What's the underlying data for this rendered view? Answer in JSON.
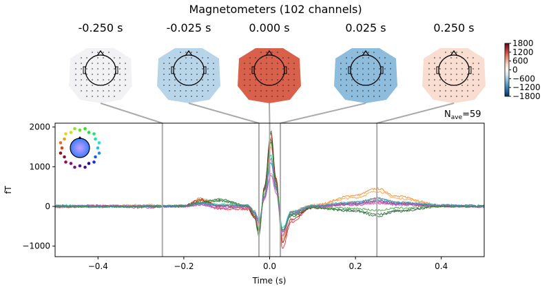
{
  "title": "Magnetometers (102 channels)",
  "nave_label": "N",
  "nave_sub": "ave",
  "nave_value": "=59",
  "topomaps": [
    {
      "label": "-0.250 s",
      "time": -0.25,
      "color": "#f2f2f4"
    },
    {
      "label": "-0.025 s",
      "time": -0.025,
      "color": "#b7d4e8"
    },
    {
      "label": "0.000 s",
      "time": 0.0,
      "color": "#d9604a"
    },
    {
      "label": "0.025 s",
      "time": 0.025,
      "color": "#8dbcdc"
    },
    {
      "label": "0.250 s",
      "time": 0.25,
      "color": "#f8ddd0"
    }
  ],
  "colorbar": {
    "ticks": [
      "1800",
      "1200",
      "600",
      "0",
      "−600",
      "−1200",
      "−1800"
    ],
    "values": [
      1800,
      1200,
      600,
      0,
      -600,
      -1200,
      -1800
    ],
    "colormap": "RdBu_r"
  },
  "chart_data": {
    "type": "line",
    "xlabel": "Time (s)",
    "ylabel": "fT",
    "xlim": [
      -0.5,
      0.5
    ],
    "ylim": [
      -1250,
      2100
    ],
    "xticks": [
      "−0.4",
      "−0.2",
      "0.0",
      "0.2",
      "0.4"
    ],
    "xtick_values": [
      -0.4,
      -0.2,
      0.0,
      0.2,
      0.4
    ],
    "yticks": [
      "2000",
      "1000",
      "0",
      "−1000"
    ],
    "ytick_values": [
      2000,
      1000,
      0,
      -1000
    ],
    "marker_times": [
      -0.25,
      -0.025,
      0.0,
      0.025,
      0.25
    ],
    "x": [
      -0.5,
      -0.4,
      -0.3,
      -0.2,
      -0.16,
      -0.12,
      -0.05,
      -0.035,
      -0.025,
      -0.012,
      0.003,
      0.015,
      0.03,
      0.05,
      0.1,
      0.2,
      0.25,
      0.3,
      0.4,
      0.5
    ],
    "series": [
      {
        "color": "#ff7f0e",
        "values": [
          0,
          20,
          10,
          20,
          200,
          40,
          0,
          -150,
          -450,
          300,
          1750,
          700,
          -900,
          -150,
          30,
          280,
          450,
          250,
          30,
          0
        ]
      },
      {
        "color": "#ff9f40",
        "values": [
          -20,
          0,
          40,
          0,
          150,
          30,
          10,
          -120,
          -400,
          250,
          1500,
          600,
          -800,
          -120,
          40,
          220,
          380,
          200,
          20,
          -10
        ]
      },
      {
        "color": "#1a6b2a",
        "values": [
          0,
          10,
          0,
          0,
          100,
          180,
          20,
          -300,
          -750,
          500,
          1900,
          600,
          -600,
          -250,
          -40,
          -120,
          -250,
          -120,
          0,
          0
        ]
      },
      {
        "color": "#2e5e3e",
        "values": [
          10,
          0,
          -10,
          0,
          80,
          150,
          0,
          -250,
          -650,
          400,
          1700,
          500,
          -650,
          -220,
          -30,
          -100,
          -200,
          -100,
          10,
          0
        ]
      },
      {
        "color": "#d62728",
        "values": [
          0,
          0,
          0,
          0,
          150,
          -60,
          -80,
          -280,
          -600,
          450,
          1650,
          700,
          -1050,
          -400,
          0,
          100,
          200,
          100,
          0,
          0
        ]
      },
      {
        "color": "#8b1a1a",
        "values": [
          0,
          20,
          0,
          10,
          180,
          0,
          -40,
          -260,
          -620,
          480,
          1850,
          650,
          -900,
          -330,
          -10,
          60,
          120,
          60,
          10,
          0
        ]
      },
      {
        "color": "#e377c2",
        "values": [
          0,
          30,
          0,
          0,
          50,
          -50,
          0,
          -180,
          -450,
          200,
          850,
          400,
          -700,
          -200,
          0,
          50,
          100,
          50,
          20,
          0
        ]
      },
      {
        "color": "#c83cb4",
        "values": [
          -20,
          10,
          -30,
          0,
          40,
          -40,
          -20,
          -170,
          -420,
          180,
          800,
          350,
          -650,
          -180,
          -10,
          40,
          80,
          40,
          0,
          -10
        ]
      },
      {
        "color": "#1f77b4",
        "values": [
          20,
          0,
          10,
          10,
          60,
          20,
          30,
          -150,
          -350,
          250,
          1100,
          450,
          -600,
          -150,
          20,
          80,
          150,
          80,
          30,
          20
        ]
      },
      {
        "color": "#17becf",
        "values": [
          30,
          -10,
          0,
          20,
          80,
          60,
          20,
          -130,
          -380,
          300,
          1300,
          500,
          -550,
          -130,
          20,
          120,
          200,
          100,
          40,
          10
        ]
      },
      {
        "color": "#9467bd",
        "values": [
          0,
          10,
          20,
          0,
          70,
          10,
          0,
          -160,
          -420,
          260,
          1200,
          480,
          -750,
          -180,
          0,
          60,
          140,
          70,
          20,
          0
        ]
      },
      {
        "color": "#2ca02c",
        "values": [
          10,
          -10,
          0,
          10,
          120,
          140,
          10,
          -220,
          -600,
          420,
          1600,
          550,
          -620,
          -200,
          -20,
          -50,
          -100,
          -40,
          0,
          10
        ]
      }
    ]
  }
}
